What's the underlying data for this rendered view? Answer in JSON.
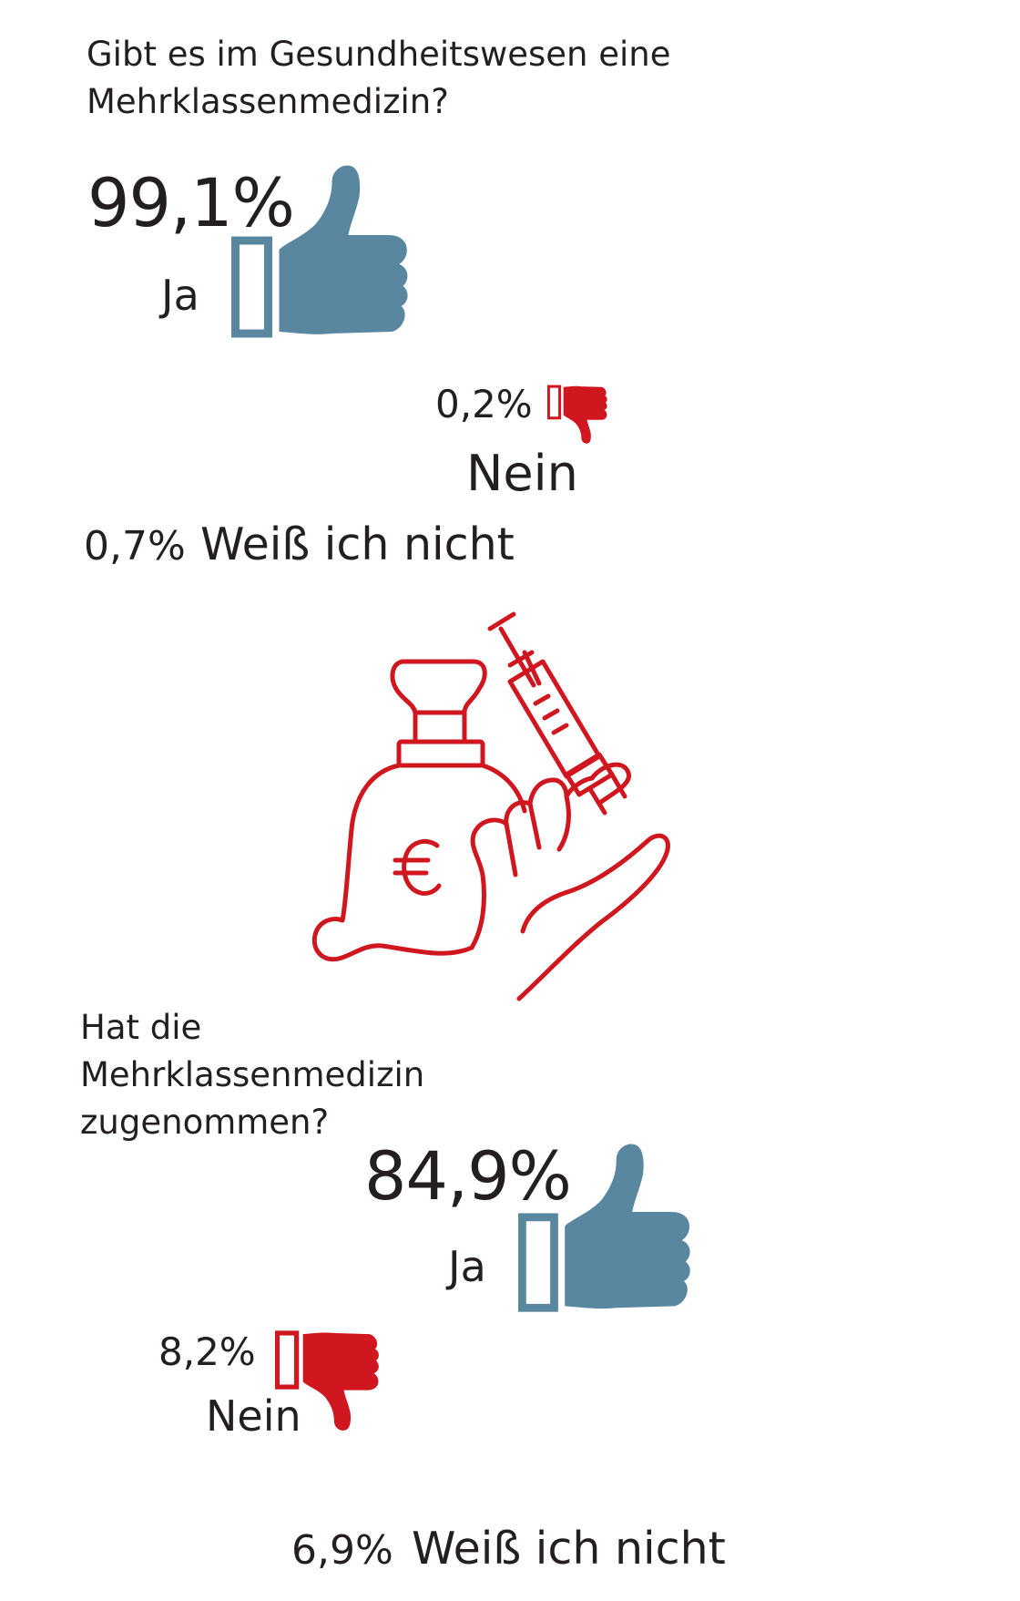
{
  "colors": {
    "yes": "#5a87a0",
    "no": "#d0161e",
    "text": "#231f20",
    "illustration": "#d0161e"
  },
  "questions": [
    {
      "question": "Gibt es im Gesundheitswesen eine Mehrklassenmedizin?",
      "ja": {
        "value": "99,1%",
        "label": "Ja"
      },
      "nein": {
        "value": "0,2%",
        "label": "Nein"
      },
      "weiss_nicht": {
        "value": "0,7%",
        "label": "Weiß ich nicht"
      }
    },
    {
      "question": "Hat die Mehrklassenmedizin zugenommen?",
      "ja": {
        "value": "84,9%",
        "label": "Ja"
      },
      "nein": {
        "value": "8,2%",
        "label": "Nein"
      },
      "weiss_nicht": {
        "value": "6,9%",
        "label": "Weiß ich nicht"
      }
    }
  ],
  "chart_data": [
    {
      "type": "bar",
      "title": "Gibt es im Gesundheitswesen eine Mehrklassenmedizin?",
      "categories": [
        "Ja",
        "Nein",
        "Weiß ich nicht"
      ],
      "values": [
        99.1,
        0.2,
        0.7
      ],
      "unit": "%"
    },
    {
      "type": "bar",
      "title": "Hat die Mehrklassenmedizin zugenommen?",
      "categories": [
        "Ja",
        "Nein",
        "Weiß ich nicht"
      ],
      "values": [
        84.9,
        8.2,
        6.9
      ],
      "unit": "%"
    }
  ],
  "icons": {
    "thumb_up": "thumbs-up-icon",
    "thumb_down": "thumbs-down-icon",
    "illustration": "money-bag-syringe-hand-illustration"
  }
}
